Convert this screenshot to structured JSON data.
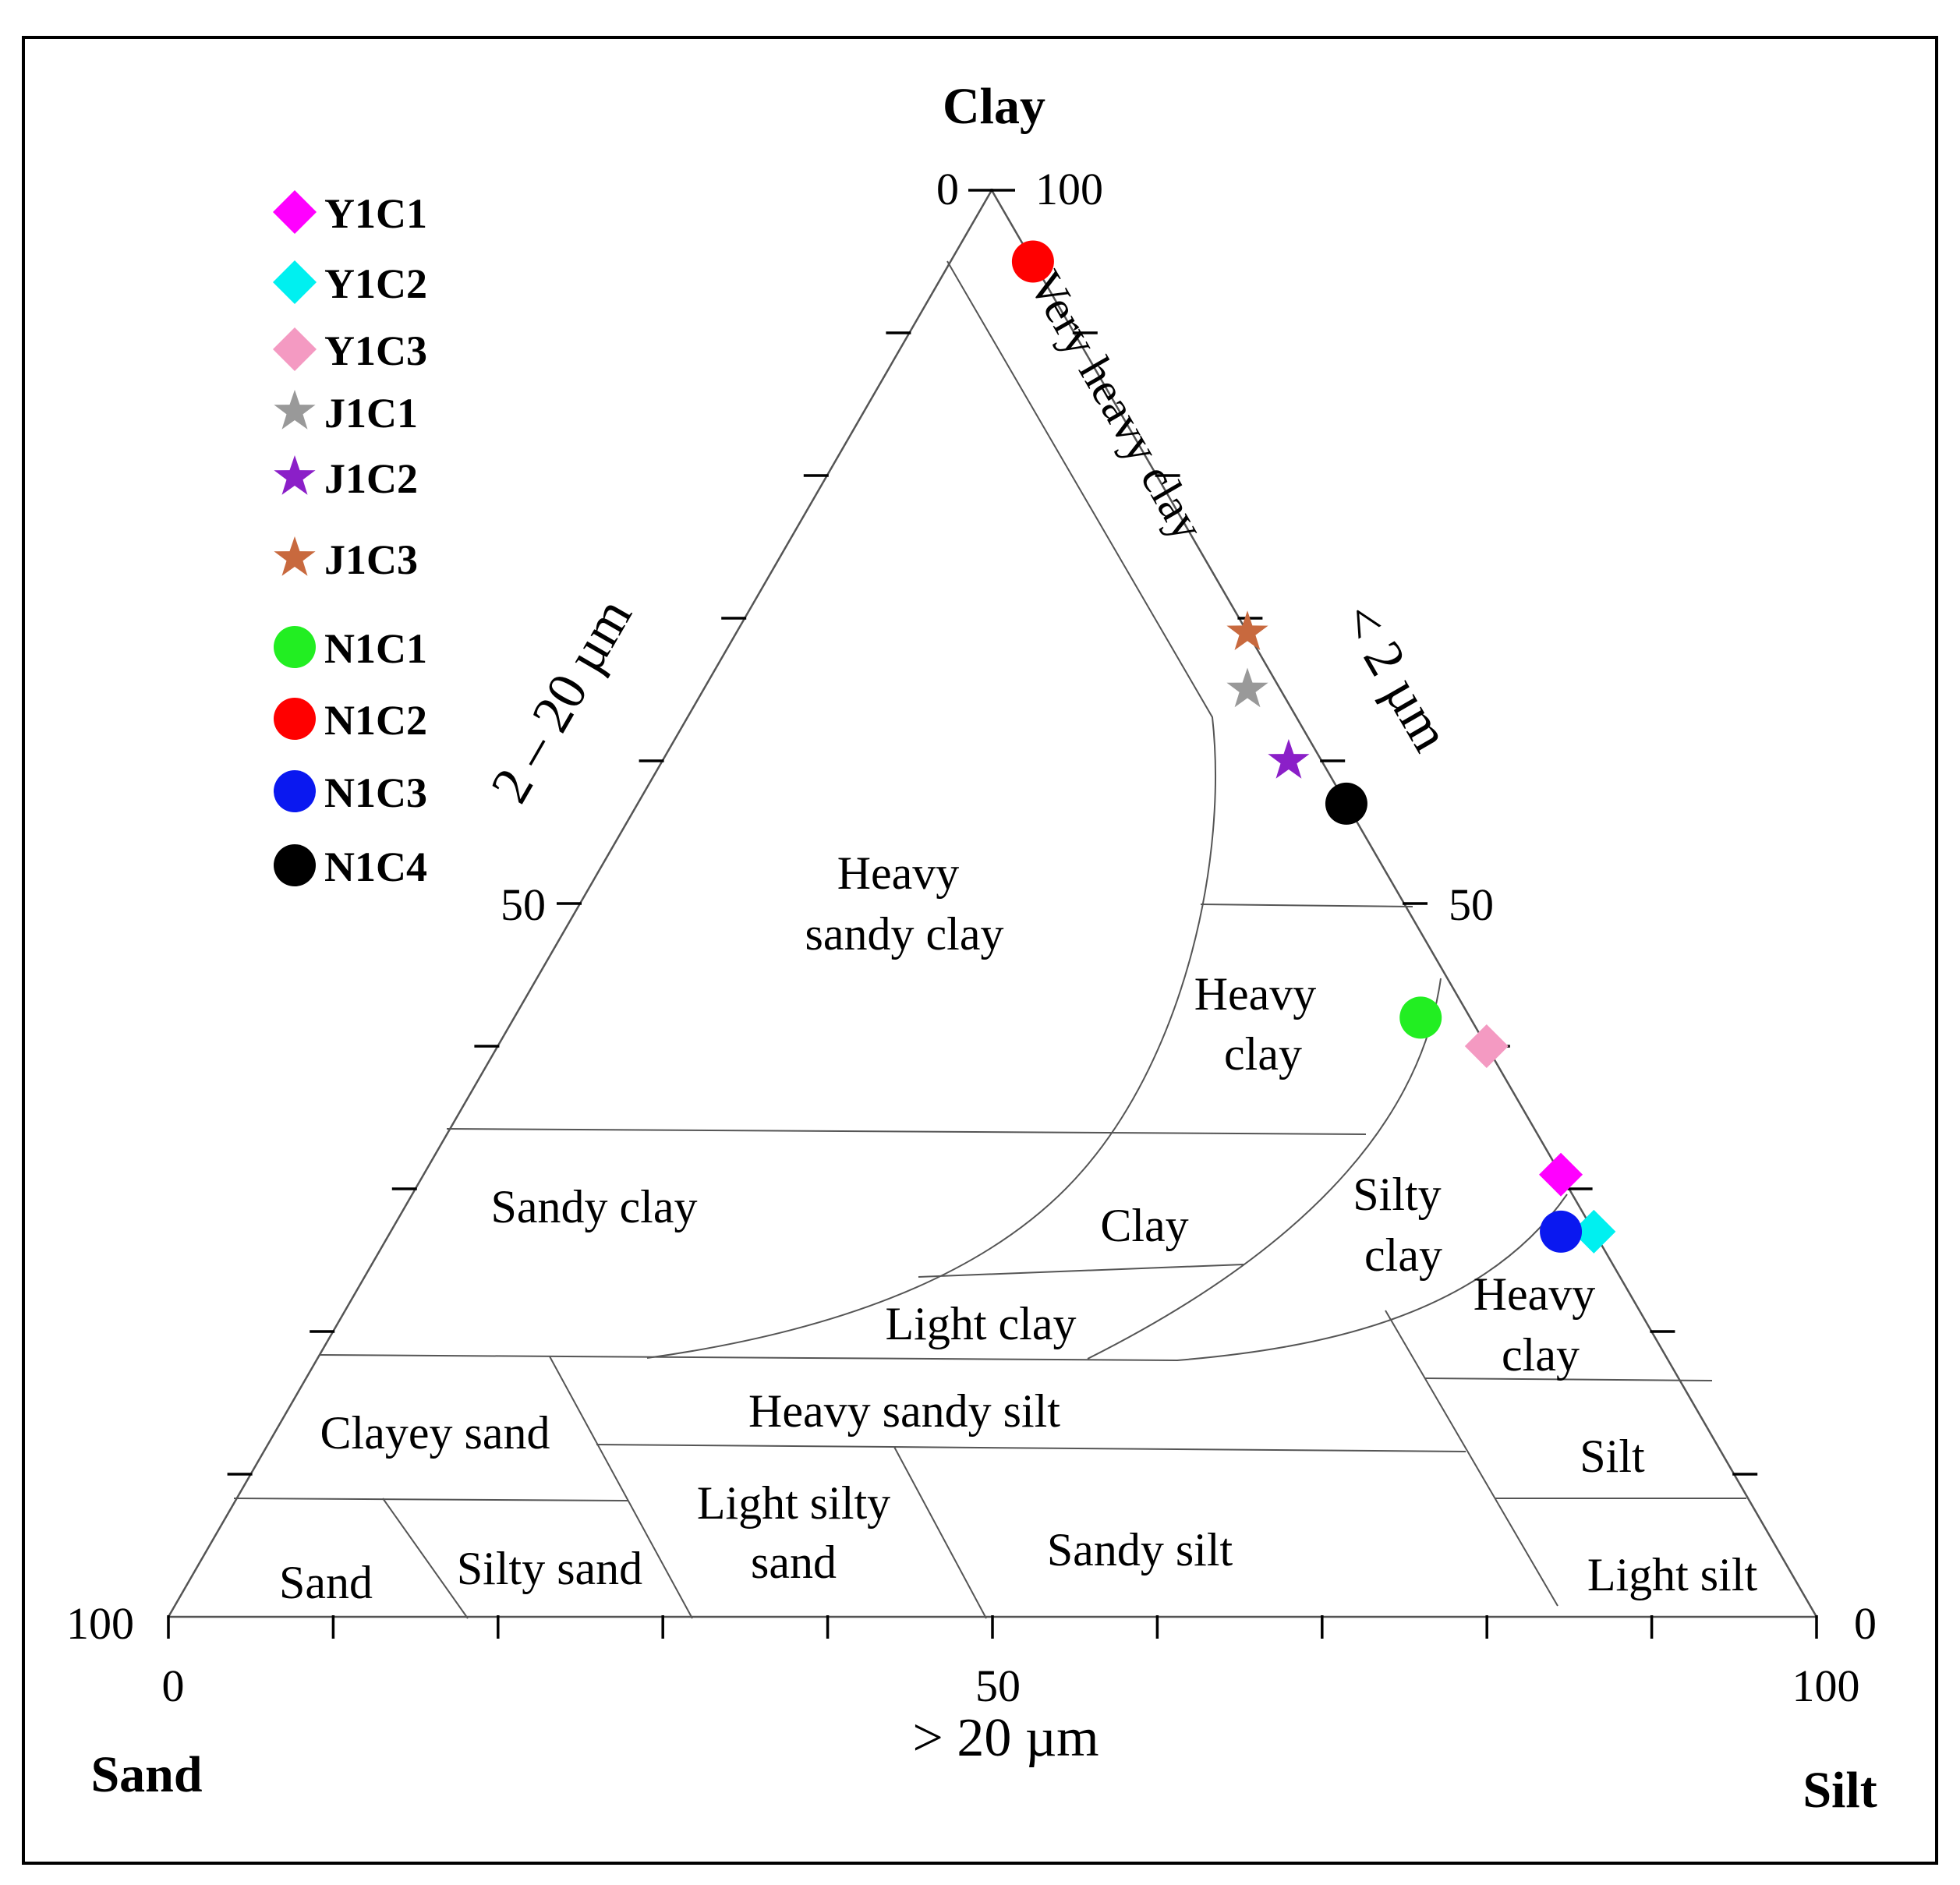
{
  "chart_data": {
    "type": "ternary",
    "corners": {
      "top": "Clay",
      "bottom_left": "Sand",
      "bottom_right": "Silt"
    },
    "axis_titles": {
      "left": "2 – 20 µm",
      "right": "< 2 µm",
      "bottom": "> 20 µm"
    },
    "tick_labels": {
      "top_left": "0",
      "top_right": "100",
      "left_mid": "50",
      "right_mid": "50",
      "bottom_left_side": "100",
      "bottom_left_under": "0",
      "bottom_mid": "50",
      "bottom_right_side": "0",
      "bottom_right_under": "100"
    },
    "regions": [
      {
        "name": "Very heavy clay",
        "lines": [
          "Very heavy clay"
        ]
      },
      {
        "name": "Heavy sandy clay",
        "lines": [
          "Heavy",
          "sandy clay"
        ]
      },
      {
        "name": "Heavy clay (upper)",
        "lines": [
          "Heavy",
          "clay"
        ]
      },
      {
        "name": "Sandy clay",
        "lines": [
          "Sandy clay"
        ]
      },
      {
        "name": "Clay",
        "lines": [
          "Clay"
        ]
      },
      {
        "name": "Silty clay",
        "lines": [
          "Silty",
          "clay"
        ]
      },
      {
        "name": "Light clay",
        "lines": [
          "Light clay"
        ]
      },
      {
        "name": "Heavy clay (lower)",
        "lines": [
          "Heavy",
          "clay"
        ]
      },
      {
        "name": "Clayey sand",
        "lines": [
          "Clayey sand"
        ]
      },
      {
        "name": "Heavy sandy silt",
        "lines": [
          "Heavy sandy silt"
        ]
      },
      {
        "name": "Silt",
        "lines": [
          "Silt"
        ]
      },
      {
        "name": "Light silty sand",
        "lines": [
          "Light silty",
          "sand"
        ]
      },
      {
        "name": "Sandy silt",
        "lines": [
          "Sandy silt"
        ]
      },
      {
        "name": "Sand",
        "lines": [
          "Sand"
        ]
      },
      {
        "name": "Silty sand",
        "lines": [
          "Silty sand"
        ]
      },
      {
        "name": "Light silt",
        "lines": [
          "Light silt"
        ]
      }
    ],
    "series": [
      {
        "name": "Y1C1",
        "marker": "diamond",
        "color": "#ff00ff",
        "clay": 31,
        "silt": 69,
        "sand": 0
      },
      {
        "name": "Y1C2",
        "marker": "diamond",
        "color": "#00f0f0",
        "clay": 27,
        "silt": 73,
        "sand": 0
      },
      {
        "name": "Y1C3",
        "marker": "diamond",
        "color": "#f49ac2",
        "clay": 40,
        "silt": 60,
        "sand": 0
      },
      {
        "name": "J1C1",
        "marker": "star",
        "color": "#999999",
        "clay": 65,
        "silt": 33,
        "sand": 2
      },
      {
        "name": "J1C2",
        "marker": "star",
        "color": "#8b1fc8",
        "clay": 60,
        "silt": 38,
        "sand": 2
      },
      {
        "name": "J1C3",
        "marker": "star",
        "color": "#c8693e",
        "clay": 69,
        "silt": 31,
        "sand": 0
      },
      {
        "name": "N1C1",
        "marker": "circle",
        "color": "#22ee22",
        "clay": 42,
        "silt": 55,
        "sand": 3
      },
      {
        "name": "N1C2",
        "marker": "circle",
        "color": "#ff0000",
        "clay": 95,
        "silt": 5,
        "sand": 0
      },
      {
        "name": "N1C3",
        "marker": "circle",
        "color": "#0a18f0",
        "clay": 27,
        "silt": 71,
        "sand": 2
      },
      {
        "name": "N1C4",
        "marker": "circle",
        "color": "#000000",
        "clay": 57,
        "silt": 43,
        "sand": 0
      }
    ]
  }
}
